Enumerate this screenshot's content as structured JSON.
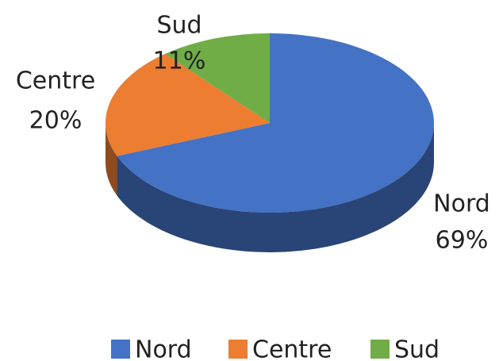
{
  "chart_data": {
    "type": "pie",
    "categories": [
      "Nord",
      "Centre",
      "Sud"
    ],
    "values": [
      69,
      20,
      11
    ],
    "value_labels": [
      "69%",
      "20%",
      "11%"
    ],
    "colors": [
      "#4472c4",
      "#ed7d31",
      "#70ad47"
    ],
    "legend": "bottom"
  }
}
